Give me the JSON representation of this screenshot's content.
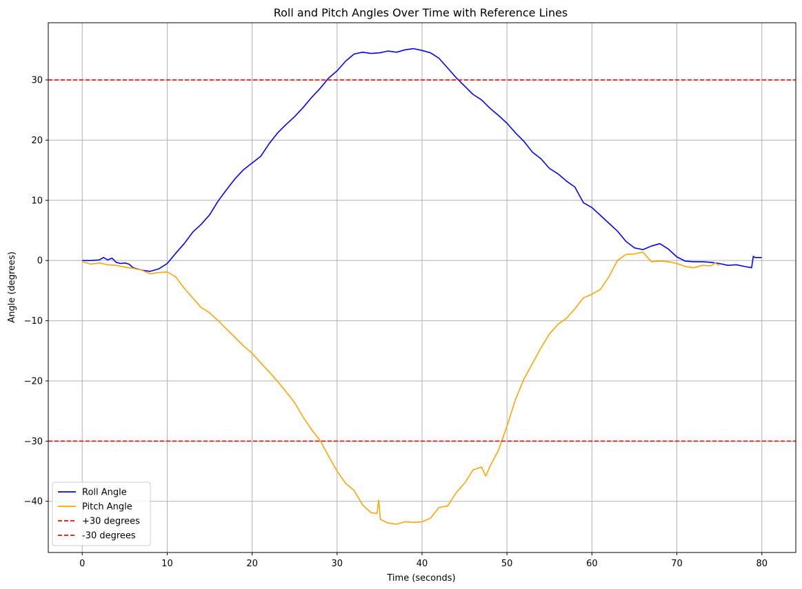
{
  "chart_data": {
    "type": "line",
    "title": "Roll and Pitch Angles Over Time with Reference Lines",
    "xlabel": "Time (seconds)",
    "ylabel": "Angle (degrees)",
    "xlim": [
      -4,
      84
    ],
    "ylim": [
      -48.5,
      39.5
    ],
    "x_ticks": [
      0,
      10,
      20,
      30,
      40,
      50,
      60,
      70,
      80
    ],
    "y_ticks": [
      -40,
      -30,
      -20,
      -10,
      0,
      10,
      20,
      30
    ],
    "grid": true,
    "legend_position": "lower-left",
    "series": [
      {
        "name": "Roll Angle",
        "color": "#0000ff",
        "style": "solid",
        "x": [
          0,
          1,
          2,
          2.5,
          3,
          3.5,
          4,
          4.5,
          5,
          5.5,
          6,
          7,
          8,
          9,
          10,
          11,
          12,
          13,
          14,
          15,
          16,
          17,
          18,
          19,
          20,
          21,
          22,
          23,
          24,
          25,
          26,
          27,
          28,
          29,
          30,
          31,
          32,
          33,
          34,
          35,
          36,
          37,
          38,
          39,
          40,
          41,
          42,
          43,
          44,
          45,
          46,
          47,
          48,
          49,
          50,
          51,
          52,
          53,
          54,
          55,
          56,
          57,
          58,
          59,
          60,
          61,
          62,
          63,
          64,
          65,
          66,
          67,
          68,
          69,
          70,
          71,
          72,
          73,
          74,
          75,
          76,
          77,
          78,
          78.8,
          79,
          79.2,
          80
        ],
        "values": [
          0,
          0,
          0.1,
          0.5,
          0.1,
          0.4,
          -0.3,
          -0.5,
          -0.4,
          -0.6,
          -1.2,
          -1.6,
          -1.8,
          -1.4,
          -0.5,
          1.2,
          2.8,
          4.7,
          6,
          7.6,
          9.9,
          11.8,
          13.6,
          15.1,
          16.2,
          17.3,
          19.4,
          21.2,
          22.6,
          23.9,
          25.4,
          27.1,
          28.6,
          30.3,
          31.5,
          33.1,
          34.3,
          34.6,
          34.4,
          34.5,
          34.8,
          34.6,
          35,
          35.2,
          34.9,
          34.5,
          33.6,
          32,
          30.4,
          29,
          27.6,
          26.7,
          25.3,
          24.1,
          22.8,
          21.2,
          19.8,
          18,
          16.9,
          15.3,
          14.4,
          13.2,
          12.2,
          9.6,
          8.8,
          7.5,
          6.2,
          4.9,
          3.2,
          2.1,
          1.8,
          2.4,
          2.8,
          1.9,
          0.6,
          -0.1,
          -0.2,
          -0.2,
          -0.3,
          -0.5,
          -0.8,
          -0.7,
          -1,
          -1.2,
          0.7,
          0.5,
          0.5
        ]
      },
      {
        "name": "Pitch Angle",
        "color": "#ffa500",
        "style": "solid",
        "x": [
          0,
          1,
          2,
          3,
          4,
          5,
          6,
          7,
          8,
          9,
          10,
          11,
          12,
          13,
          14,
          15,
          16,
          17,
          18,
          19,
          20,
          21,
          22,
          23,
          24,
          25,
          26,
          27,
          28,
          29,
          30,
          31,
          32,
          33,
          34,
          34.7,
          34.9,
          35.1,
          36,
          37,
          38,
          39,
          40,
          41,
          42,
          43,
          44,
          45,
          46,
          47,
          47.5,
          48,
          49,
          50,
          51,
          52,
          53,
          54,
          55,
          56,
          57,
          58,
          59,
          60,
          61,
          62,
          63,
          64,
          65,
          66,
          67,
          68,
          69,
          70,
          71,
          72,
          73,
          74,
          74.5,
          75
        ],
        "values": [
          -0.2,
          -0.6,
          -0.4,
          -0.7,
          -0.8,
          -1.1,
          -1.3,
          -1.6,
          -2.2,
          -2,
          -1.9,
          -2.7,
          -4.6,
          -6.2,
          -7.8,
          -8.7,
          -10,
          -11.4,
          -12.8,
          -14.2,
          -15.4,
          -17,
          -18.5,
          -20.1,
          -21.8,
          -23.6,
          -26,
          -28.1,
          -29.9,
          -32.5,
          -35,
          -37,
          -38.2,
          -40.6,
          -41.9,
          -42,
          -39.8,
          -43,
          -43.6,
          -43.8,
          -43.4,
          -43.5,
          -43.4,
          -42.8,
          -41,
          -40.8,
          -38.6,
          -37,
          -34.8,
          -34.3,
          -35.8,
          -34.2,
          -31.5,
          -27.5,
          -23.1,
          -19.7,
          -17.1,
          -14.5,
          -12.2,
          -10.6,
          -9.6,
          -8,
          -6.2,
          -5.6,
          -4.8,
          -2.7,
          0,
          1,
          1.1,
          1.4,
          -0.2,
          -0.1,
          -0.2,
          -0.5,
          -1,
          -1.2,
          -0.8,
          -0.9,
          -0.4,
          -0.8
        ]
      },
      {
        "name": "+30 degrees",
        "color": "#ff0000",
        "style": "dashed",
        "y": 30
      },
      {
        "name": "-30 degrees",
        "color": "#ff0000",
        "style": "dashed",
        "y": -30
      }
    ]
  }
}
